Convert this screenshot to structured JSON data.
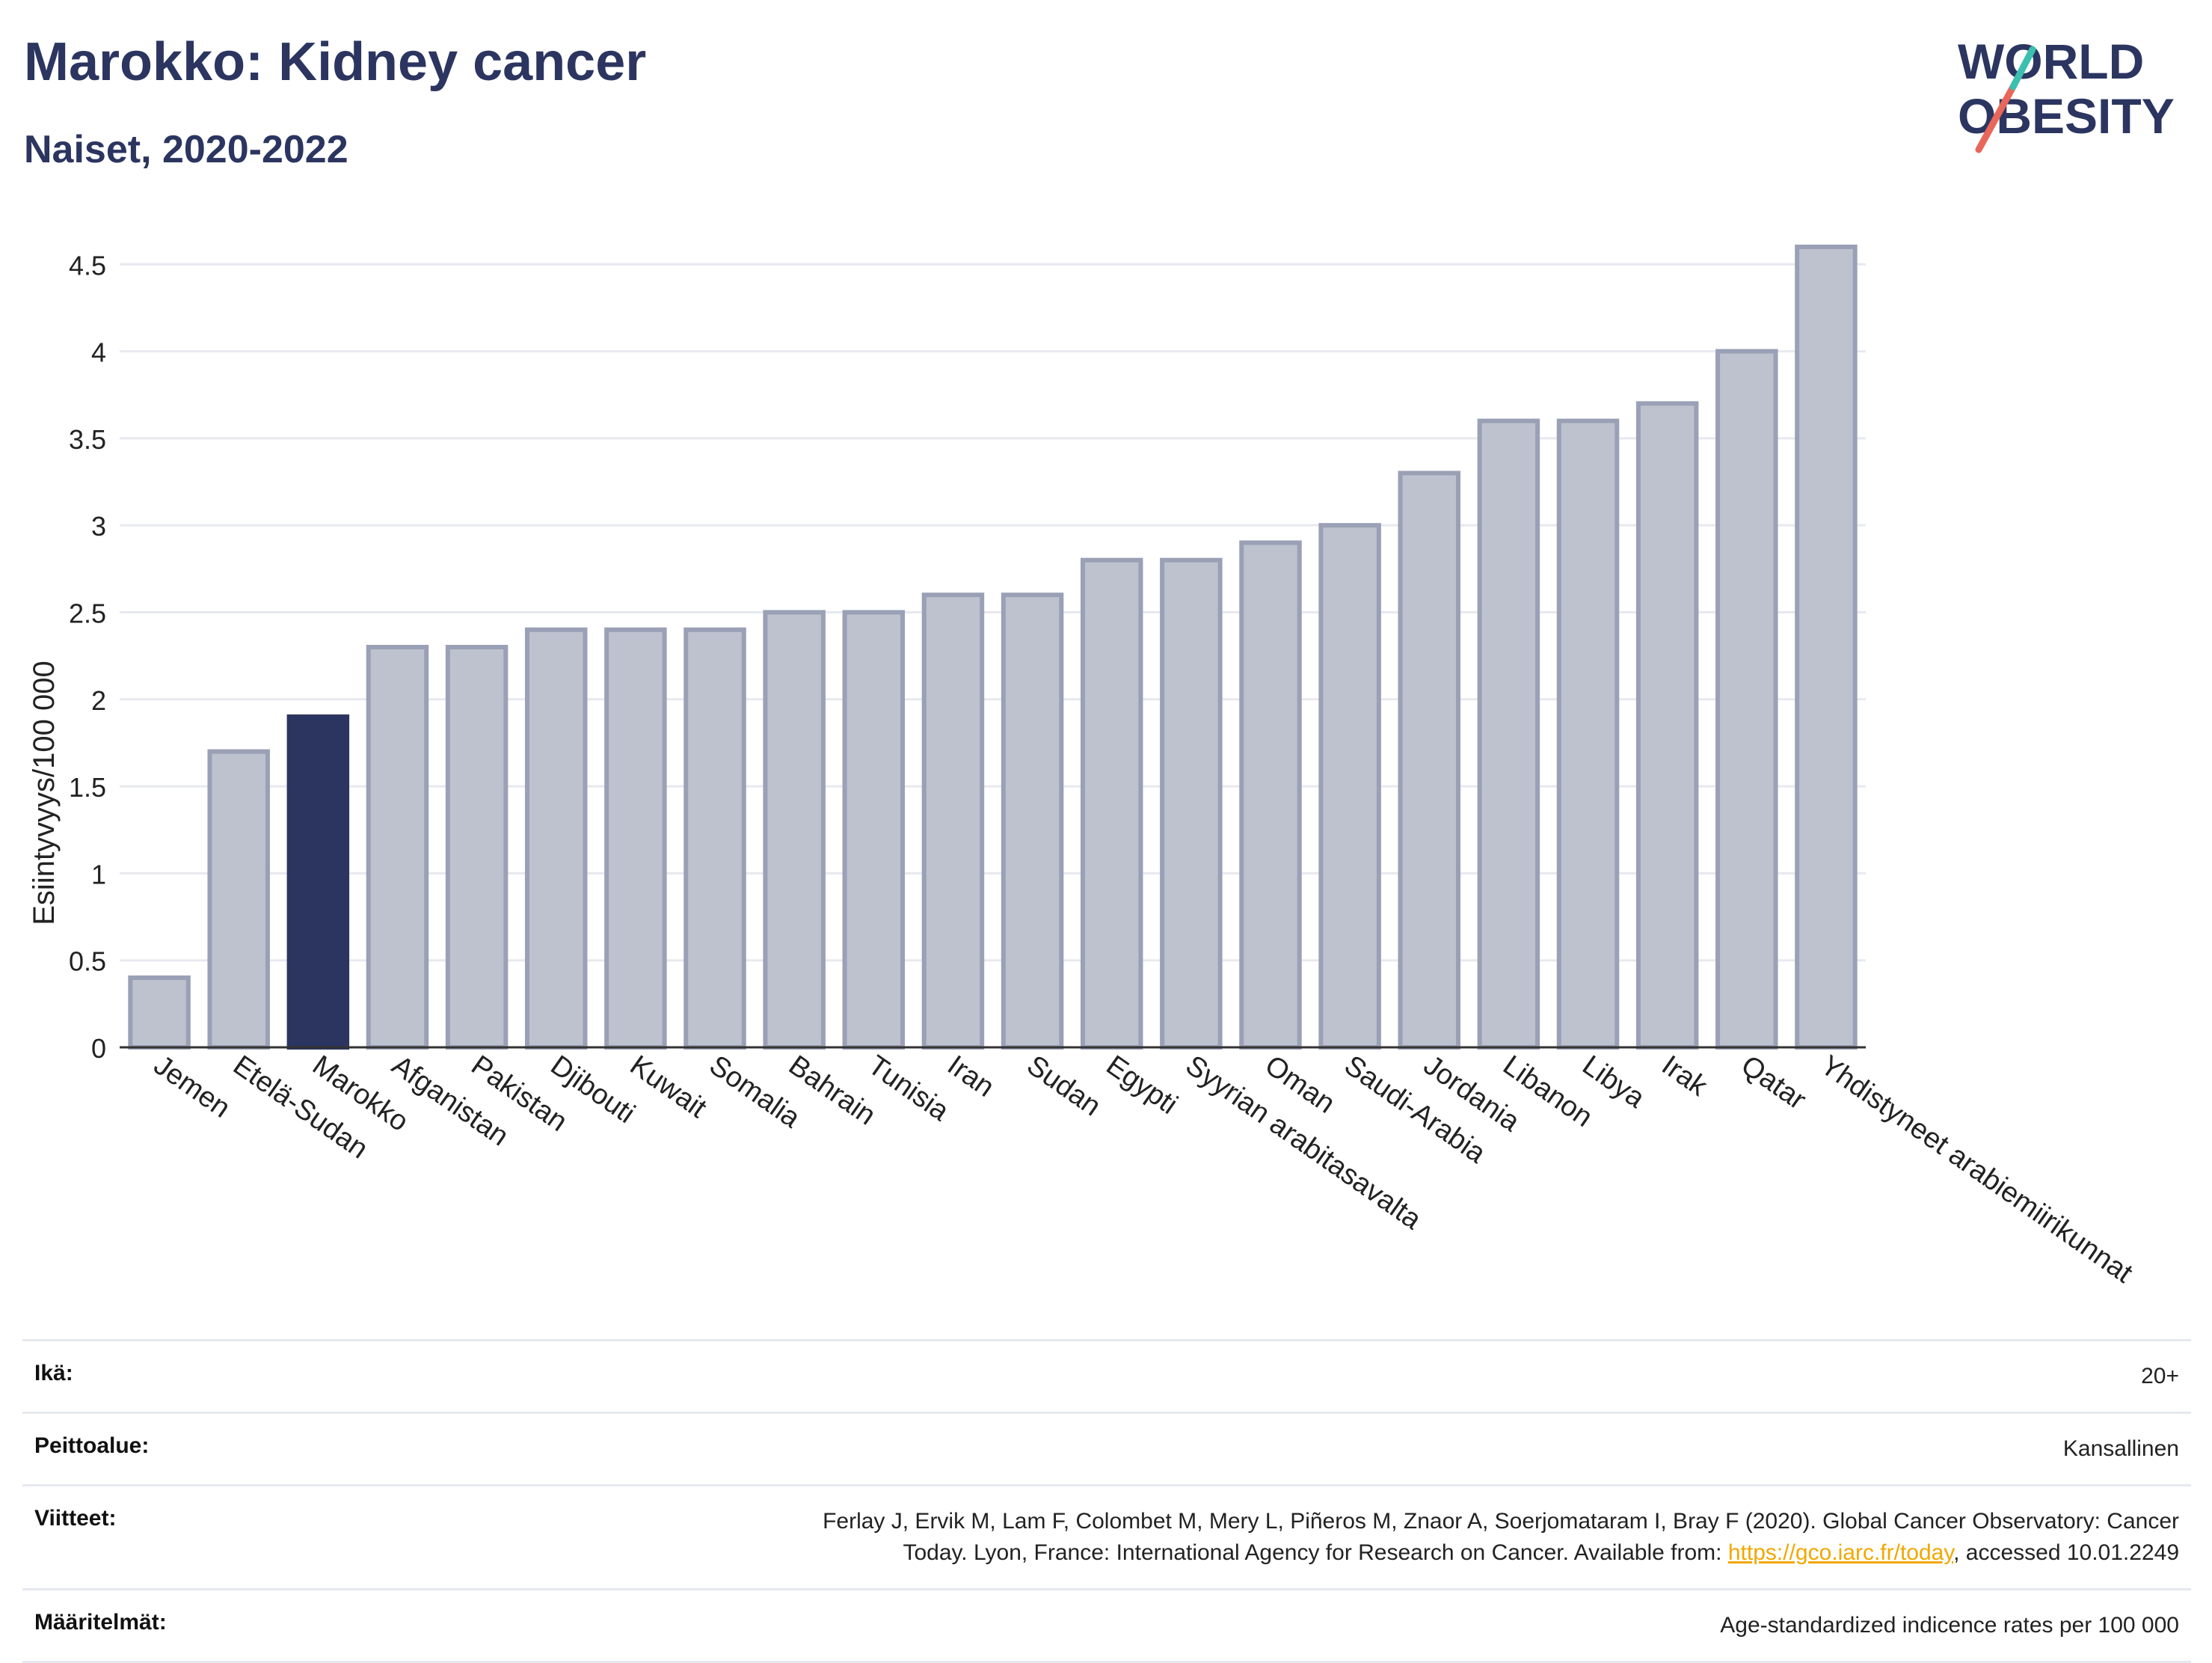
{
  "header": {
    "title": "Marokko: Kidney cancer",
    "subtitle": "Naiset, 2020-2022"
  },
  "logo": {
    "line1": "WORLD",
    "line2": "OBESITY",
    "text_color": "#2b3560",
    "slash_colors": [
      "#e8675a",
      "#3bbfb0"
    ]
  },
  "colors": {
    "bar_default": "#bec2cf",
    "bar_default_stroke": "#9aa0b5",
    "bar_highlight": "#2b3560",
    "grid": "#e8e9ef",
    "axis": "#333333"
  },
  "chart_data": {
    "type": "bar",
    "title": "Marokko: Kidney cancer",
    "subtitle": "Naiset, 2020-2022",
    "ylabel": "Esiintyvyys/100 000",
    "xlabel": "",
    "ylim": [
      0,
      4.6
    ],
    "yticks": [
      "0",
      "0.5",
      "1",
      "1.5",
      "2",
      "2.5",
      "3",
      "3.5",
      "4",
      "4.5"
    ],
    "ytick_values": [
      0,
      0.5,
      1,
      1.5,
      2,
      2.5,
      3,
      3.5,
      4,
      4.5
    ],
    "grid": true,
    "highlight": "Marokko",
    "categories": [
      "Jemen",
      "Etelä-Sudan",
      "Marokko",
      "Afganistan",
      "Pakistan",
      "Djibouti",
      "Kuwait",
      "Somalia",
      "Bahrain",
      "Tunisia",
      "Iran",
      "Sudan",
      "Egypti",
      "Syyrian arabitasavalta",
      "Oman",
      "Saudi-Arabia",
      "Jordania",
      "Libanon",
      "Libya",
      "Irak",
      "Qatar",
      "Yhdistyneet arabiemiirikunnat"
    ],
    "values": [
      0.4,
      1.7,
      1.9,
      2.3,
      2.3,
      2.4,
      2.4,
      2.4,
      2.5,
      2.5,
      2.6,
      2.6,
      2.8,
      2.8,
      2.9,
      3.0,
      3.3,
      3.6,
      3.6,
      3.7,
      4.0,
      4.6
    ]
  },
  "info": {
    "age_label": "Ikä:",
    "age_value": "20+",
    "coverage_label": "Peittoalue:",
    "coverage_value": "Kansallinen",
    "refs_label": "Viitteet:",
    "refs_line1": "Ferlay J, Ervik M, Lam F, Colombet M, Mery L, Piñeros M, Znaor A, Soerjomataram I, Bray F (2020). Global Cancer Observatory: Cancer",
    "refs_line2_pre": "Today. Lyon, France: International Agency for Research on Cancer. Available from: ",
    "refs_link": "https://gco.iarc.fr/today",
    "refs_line2_post": ", accessed 10.01.2249",
    "defs_label": "Määritelmät:",
    "defs_value": "Age-standardized indicence rates per 100 000"
  }
}
